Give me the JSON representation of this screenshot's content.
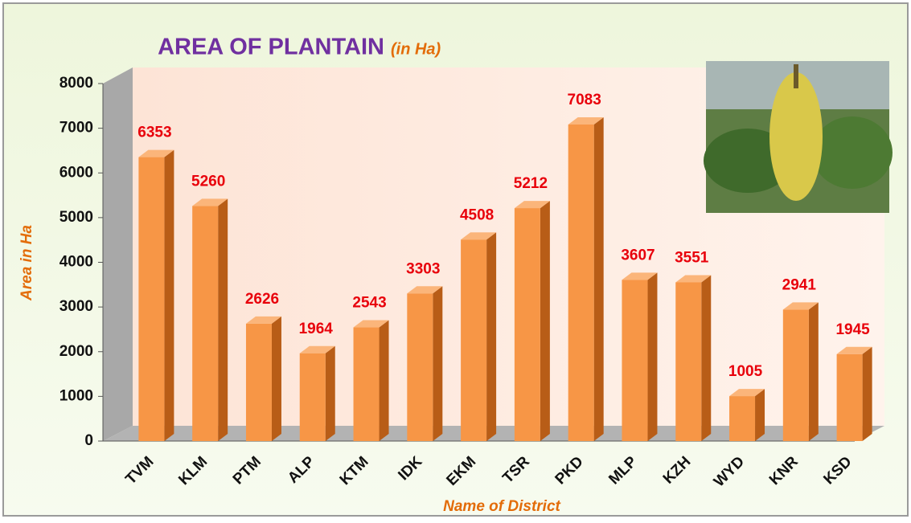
{
  "chart_data": {
    "type": "bar",
    "title": "AREA OF PLANTAIN",
    "subtitle": "(in Ha)",
    "x_label": "Name of District",
    "y_label": "Area in Ha",
    "categories": [
      "TVM",
      "KLM",
      "PTM",
      "ALP",
      "KTM",
      "IDK",
      "EKM",
      "TSR",
      "PKD",
      "MLP",
      "KZH",
      "WYD",
      "KNR",
      "KSD"
    ],
    "values": [
      6353,
      5260,
      2626,
      1964,
      2543,
      3303,
      4508,
      5212,
      7083,
      3607,
      3551,
      1005,
      2941,
      1945
    ],
    "color": "#f79646",
    "label_color": "#e8000b",
    "ylim": [
      0,
      8000
    ],
    "yticks": [
      0,
      1000,
      2000,
      3000,
      4000,
      5000,
      6000,
      7000,
      8000
    ],
    "grid": false
  }
}
